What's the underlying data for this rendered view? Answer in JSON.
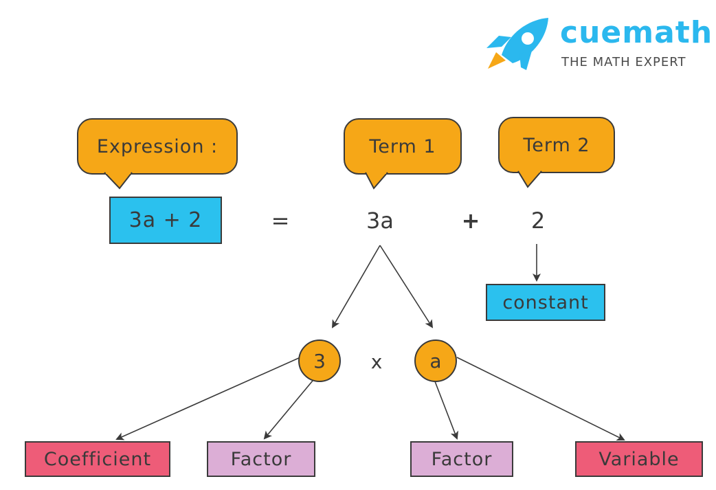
{
  "logo": {
    "name": "cuemath",
    "tagline": "THE MATH EXPERT",
    "brand_color": "#2bb8ee",
    "accent_color": "#f6a717"
  },
  "bubbles": {
    "expression": "Expression :",
    "term1": "Term 1",
    "term2": "Term 2"
  },
  "equation": {
    "expression": "3a + 2",
    "equals": "=",
    "term1": "3a",
    "plus": "+",
    "term2": "2"
  },
  "constant_label": "constant",
  "factors": {
    "left": "3",
    "times": "x",
    "right": "a"
  },
  "labels": {
    "coefficient": "Coefficient",
    "factor_left": "Factor",
    "factor_right": "Factor",
    "variable": "Variable"
  },
  "colors": {
    "bubble": "#f6a717",
    "blue_box": "#2bc1ee",
    "pink_box": "#ee5c78",
    "lilac_box": "#dcaed6",
    "outline": "#3a3a3a"
  }
}
